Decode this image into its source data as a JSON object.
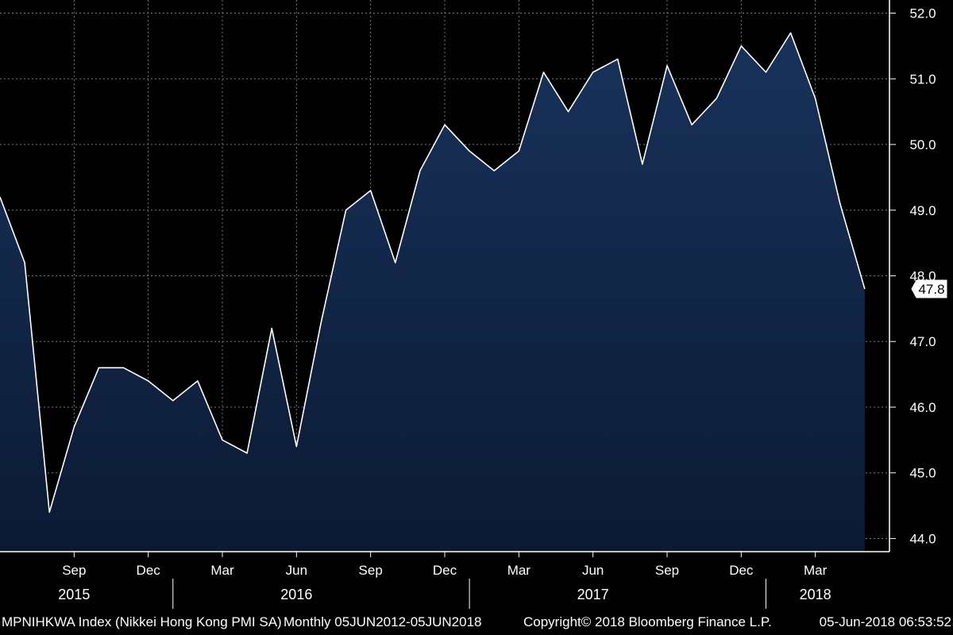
{
  "chart_data": {
    "type": "area",
    "title": "",
    "xlabel": "",
    "ylabel": "",
    "ylim": [
      43.8,
      52.2
    ],
    "grid": true,
    "y_ticks": [
      "44.0",
      "45.0",
      "46.0",
      "47.0",
      "48.0",
      "49.0",
      "50.0",
      "51.0",
      "52.0"
    ],
    "month_ticks": [
      {
        "label": "Sep",
        "x": "2015-09"
      },
      {
        "label": "Dec",
        "x": "2015-12"
      },
      {
        "label": "Mar",
        "x": "2016-03"
      },
      {
        "label": "Jun",
        "x": "2016-06"
      },
      {
        "label": "Sep",
        "x": "2016-09"
      },
      {
        "label": "Dec",
        "x": "2016-12"
      },
      {
        "label": "Mar",
        "x": "2017-03"
      },
      {
        "label": "Jun",
        "x": "2017-06"
      },
      {
        "label": "Sep",
        "x": "2017-09"
      },
      {
        "label": "Dec",
        "x": "2017-12"
      },
      {
        "label": "Mar",
        "x": "2018-03"
      }
    ],
    "year_ticks": [
      {
        "label": "2015",
        "x": "2015-09"
      },
      {
        "label": "2016",
        "x": "2016-06"
      },
      {
        "label": "2017",
        "x": "2017-06"
      },
      {
        "label": "2018",
        "x": "2018-03"
      }
    ],
    "year_dividers": [
      "2016-01",
      "2017-01",
      "2018-01"
    ],
    "x_start": "2015-06",
    "x_end": "2018-06",
    "series": [
      {
        "name": "",
        "color": "#ffffff",
        "fill_top": "#18325a",
        "fill_bottom": "#0b1a33",
        "x": [
          "2015-06",
          "2015-07",
          "2015-08",
          "2015-09",
          "2015-10",
          "2015-11",
          "2015-12",
          "2016-01",
          "2016-02",
          "2016-03",
          "2016-04",
          "2016-05",
          "2016-06",
          "2016-07",
          "2016-08",
          "2016-09",
          "2016-10",
          "2016-11",
          "2016-12",
          "2017-01",
          "2017-02",
          "2017-03",
          "2017-04",
          "2017-05",
          "2017-06",
          "2017-07",
          "2017-08",
          "2017-09",
          "2017-10",
          "2017-11",
          "2017-12",
          "2018-01",
          "2018-02",
          "2018-03",
          "2018-04",
          "2018-05"
        ],
        "values": [
          49.2,
          48.2,
          44.4,
          45.7,
          46.6,
          46.6,
          46.4,
          46.1,
          46.4,
          45.5,
          45.3,
          47.2,
          45.4,
          47.3,
          49.0,
          49.3,
          48.2,
          49.6,
          50.3,
          49.9,
          49.6,
          49.9,
          51.1,
          50.5,
          51.1,
          51.3,
          49.7,
          51.2,
          50.3,
          50.7,
          51.5,
          51.1,
          51.7,
          50.7,
          49.1,
          47.8
        ]
      }
    ],
    "last_value_label": "47.8",
    "background": "#000000",
    "grid_color": "#7a7a7a"
  },
  "footer": {
    "ticker": "MPNIHKWA Index (Nikkei Hong Kong PMI SA)",
    "range": "Monthly 05JUN2012-05JUN2018",
    "copyright": "Copyright© 2018 Bloomberg Finance L.P.",
    "timestamp": "05-Jun-2018 06:53:52"
  }
}
